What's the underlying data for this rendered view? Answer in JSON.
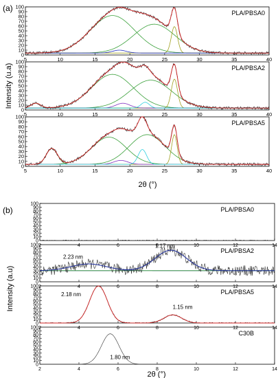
{
  "figure_a": {
    "panel_label": "(a)",
    "ylabel": "Intensity (u.a)",
    "xlabel": "2θ (°)"
  },
  "figure_b": {
    "panel_label": "(b)",
    "ylabel": "Intensity (a.u)",
    "xlabel": "2θ (°)"
  },
  "colors": {
    "data": "#303030",
    "fit": "#d02020",
    "green": "#3aa03a",
    "olive": "#a0a020",
    "blue": "#2030c0",
    "purple": "#8030c0",
    "cyan": "#30d0e0",
    "navy": "#2030a0"
  },
  "chart_data": [
    {
      "id": "a1",
      "type": "line",
      "title": "PLA/PBSA0",
      "xlim": [
        5,
        40
      ],
      "ylim": [
        0,
        100
      ],
      "xticks": [
        5,
        10,
        15,
        20,
        25,
        30,
        35,
        40
      ],
      "yticks": [
        0,
        10,
        20,
        30,
        40,
        50,
        60,
        70,
        80,
        90,
        100
      ],
      "baseline": 4,
      "peaks": [
        {
          "center": 17.5,
          "height": 78,
          "width": 3.2,
          "color": "green"
        },
        {
          "center": 23.5,
          "height": 60,
          "width": 3.0,
          "color": "green"
        },
        {
          "center": 26.4,
          "height": 55,
          "width": 0.45,
          "color": "olive"
        },
        {
          "center": 18.5,
          "height": 6,
          "width": 1.0,
          "color": "blue"
        }
      ]
    },
    {
      "id": "a2",
      "type": "line",
      "title": "PLA/PBSA2",
      "xlim": [
        5,
        40
      ],
      "ylim": [
        0,
        100
      ],
      "xticks": [
        5,
        10,
        15,
        20,
        25,
        30,
        35,
        40
      ],
      "yticks": [
        0,
        10,
        20,
        30,
        40,
        50,
        60,
        70,
        80,
        90,
        100
      ],
      "baseline": 4,
      "peaks": [
        {
          "center": 6.5,
          "height": 10,
          "width": 0.7,
          "color": "green"
        },
        {
          "center": 17.5,
          "height": 70,
          "width": 3.0,
          "color": "green"
        },
        {
          "center": 23.0,
          "height": 58,
          "width": 3.0,
          "color": "green"
        },
        {
          "center": 26.4,
          "height": 60,
          "width": 0.45,
          "color": "olive"
        },
        {
          "center": 19.0,
          "height": 10,
          "width": 1.0,
          "color": "purple"
        },
        {
          "center": 22.2,
          "height": 12,
          "width": 0.6,
          "color": "cyan"
        }
      ]
    },
    {
      "id": "a3",
      "type": "line",
      "title": "PLA/PBSA5",
      "xlim": [
        5,
        40
      ],
      "ylim": [
        0,
        100
      ],
      "xticks": [
        5,
        10,
        15,
        20,
        25,
        30,
        35,
        40
      ],
      "yticks": [
        0,
        10,
        20,
        30,
        40,
        50,
        60,
        70,
        80,
        90,
        100
      ],
      "baseline": 4,
      "peaks": [
        {
          "center": 8.8,
          "height": 32,
          "width": 0.8,
          "color": "green"
        },
        {
          "center": 17.0,
          "height": 55,
          "width": 2.5,
          "color": "green"
        },
        {
          "center": 22.5,
          "height": 60,
          "width": 2.6,
          "color": "green"
        },
        {
          "center": 26.4,
          "height": 60,
          "width": 0.4,
          "color": "olive"
        },
        {
          "center": 18.7,
          "height": 8,
          "width": 1.0,
          "color": "purple"
        },
        {
          "center": 21.8,
          "height": 30,
          "width": 0.6,
          "color": "cyan"
        }
      ]
    },
    {
      "id": "b1",
      "type": "line",
      "title": "PLA/PBSA0",
      "xlim": [
        2,
        14
      ],
      "ylim": [
        0,
        100
      ],
      "xticks": [
        2,
        4,
        6,
        8,
        10,
        12,
        14
      ],
      "yticks": [
        0,
        10,
        20,
        30,
        40,
        50,
        60,
        70,
        80,
        90,
        100
      ],
      "baseline": 0,
      "peaks": []
    },
    {
      "id": "b2",
      "type": "line",
      "title": "PLA/PBSA2",
      "xlim": [
        2,
        14
      ],
      "ylim": [
        0,
        100
      ],
      "xticks": [
        2,
        4,
        6,
        8,
        10,
        12,
        14
      ],
      "yticks": [
        0,
        10,
        20,
        30,
        40,
        50,
        60,
        70,
        80,
        90,
        100
      ],
      "baseline": 30,
      "peaks": [
        {
          "center": 4.5,
          "height": 18,
          "width": 0.9,
          "color": "navy"
        },
        {
          "center": 8.7,
          "height": 55,
          "width": 0.8,
          "color": "navy"
        }
      ],
      "annotations": [
        {
          "text": "2.23 nm",
          "x": 3.7,
          "y": 62
        },
        {
          "text": "1.17 nm",
          "x": 8.4,
          "y": 92
        }
      ]
    },
    {
      "id": "b3",
      "type": "line",
      "title": "PLA/PBSA5",
      "xlim": [
        2,
        14
      ],
      "ylim": [
        0,
        100
      ],
      "xticks": [
        2,
        4,
        6,
        8,
        10,
        12,
        14
      ],
      "yticks": [
        0,
        10,
        20,
        30,
        40,
        50,
        60,
        70,
        80,
        90,
        100
      ],
      "baseline": 0,
      "peaks": [
        {
          "center": 5.0,
          "height": 100,
          "width": 0.45,
          "color": "fit"
        },
        {
          "center": 8.8,
          "height": 22,
          "width": 0.45,
          "color": "fit"
        }
      ],
      "annotations": [
        {
          "text": "2.18 nm",
          "x": 3.6,
          "y": 72
        },
        {
          "text": "1.15 nm",
          "x": 9.3,
          "y": 38
        }
      ]
    },
    {
      "id": "b4",
      "type": "line",
      "title": "C30B",
      "xlim": [
        2,
        14
      ],
      "ylim": [
        0,
        100
      ],
      "xticks": [
        2,
        4,
        6,
        8,
        10,
        12,
        14
      ],
      "yticks": [
        0,
        10,
        20,
        30,
        40,
        50,
        60,
        70,
        80,
        90,
        100
      ],
      "baseline": 0,
      "peaks": [
        {
          "center": 5.6,
          "height": 82,
          "width": 0.45,
          "color": "data"
        }
      ],
      "annotations": [
        {
          "text": "1.80 nm",
          "x": 6.1,
          "y": 14
        }
      ]
    }
  ]
}
